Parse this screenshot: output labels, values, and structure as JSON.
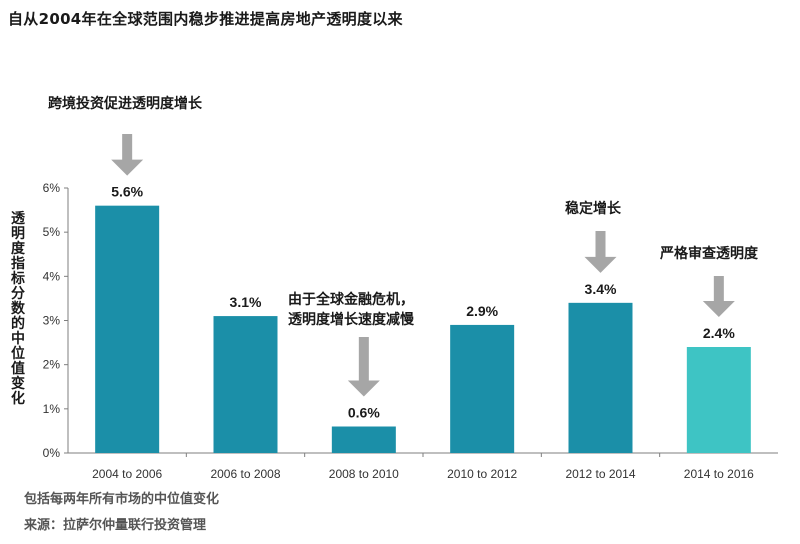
{
  "chart_data": {
    "type": "bar",
    "title": "自从2004年在全球范围内稳步推进提高房地产透明度以来",
    "ylabel": "透明度指标分数的中位值变化",
    "xlabel": "",
    "categories": [
      "2004 to 2006",
      "2006 to 2008",
      "2008 to 2010",
      "2010 to 2012",
      "2012 to 2014",
      "2014 to 2016"
    ],
    "values": [
      5.6,
      3.1,
      0.6,
      2.9,
      3.4,
      2.4
    ],
    "data_labels": [
      "5.6%",
      "3.1%",
      "0.6%",
      "2.9%",
      "3.4%",
      "2.4%"
    ],
    "ylim": [
      0,
      6
    ],
    "yticks": [
      "0%",
      "1%",
      "2%",
      "3%",
      "4%",
      "5%",
      "6%"
    ],
    "grid": false,
    "colors": {
      "bar": "#1b8fa8",
      "highlight_bar": "#3ec4c4",
      "arrow": "#a6a6a6"
    },
    "annotations": [
      {
        "text": "跨境投资促进透明度增长",
        "category": "2004 to 2006"
      },
      {
        "text": "由于全球金融危机，\n透明度增长速度减慢",
        "category": "2008 to 2010"
      },
      {
        "text": "稳定增长",
        "category": "2012 to 2014"
      },
      {
        "text": "严格审查透明度",
        "category": "2014 to 2016"
      }
    ],
    "footnote": "包括每两年所有市场的中位值变化",
    "source": "来源：拉萨尔仲量联行投资管理"
  }
}
